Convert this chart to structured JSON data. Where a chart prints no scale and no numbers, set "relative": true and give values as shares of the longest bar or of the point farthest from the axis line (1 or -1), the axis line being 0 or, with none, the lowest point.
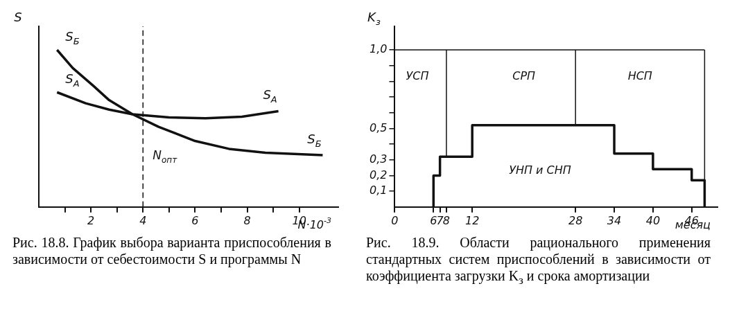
{
  "chart_data": [
    {
      "type": "line",
      "relative": true,
      "ylabel": "S",
      "xlabel": "N·10$^{-3}$",
      "xlim": [
        0,
        11.5
      ],
      "xticks": [
        {
          "value": 1,
          "label": null
        },
        2,
        {
          "value": 3,
          "label": null
        },
        4,
        {
          "value": 5,
          "label": null
        },
        6,
        {
          "value": 7,
          "label": null
        },
        8,
        {
          "value": 9,
          "label": null
        },
        10
      ],
      "series": [
        {
          "name": "S$_{Б}$",
          "color": "#111111",
          "x": [
            0.7,
            1.3,
            2.1,
            2.7,
            3.6,
            4.6,
            6.0,
            7.3,
            8.7,
            10.9
          ],
          "values": [
            1.0,
            0.885,
            0.77,
            0.68,
            0.59,
            0.51,
            0.42,
            0.37,
            0.345,
            0.33
          ]
        },
        {
          "name": "S$_{A}$",
          "color": "#111111",
          "x": [
            0.7,
            1.8,
            2.7,
            3.6,
            5.0,
            6.4,
            7.8,
            9.2
          ],
          "values": [
            0.73,
            0.66,
            0.62,
            0.59,
            0.57,
            0.565,
            0.575,
            0.61
          ]
        }
      ],
      "ref_lines": [
        {
          "axis": "x",
          "value": 4,
          "label": "N$_{опт}$",
          "line_style": "dashed",
          "color": "#111111"
        }
      ],
      "title": "Рис. 18.8. График выбора варианта приспособления в зависимости от себестоимости S и программы N",
      "grid": false,
      "legend": false,
      "marker": "none"
    },
    {
      "type": "step",
      "ylabel": "K$_{з}$",
      "xlabel": "месяц",
      "xlim": [
        0,
        50
      ],
      "xticks": [
        0,
        6,
        7,
        8,
        12,
        28,
        34,
        40,
        46
      ],
      "ylim": [
        0,
        1.15
      ],
      "yticks": [
        {
          "value": 0.1,
          "label": "0,1"
        },
        {
          "value": 0.2,
          "label": "0,2"
        },
        {
          "value": 0.3,
          "label": "0,3"
        },
        {
          "value": 0.4,
          "label": null
        },
        {
          "value": 0.5,
          "label": "0,5"
        },
        {
          "value": 0.6,
          "label": null
        },
        {
          "value": 0.7,
          "label": null
        },
        {
          "value": 0.8,
          "label": null
        },
        {
          "value": 0.9,
          "label": null
        },
        {
          "value": 1.0,
          "label": "1,0"
        }
      ],
      "series": [
        {
          "color": "#111111",
          "x": [
            6,
            6,
            7,
            12,
            34,
            40,
            46,
            48,
            48
          ],
          "values": [
            0,
            0.2,
            0.32,
            0.52,
            0.34,
            0.24,
            0.17,
            0.17,
            0
          ]
        },
        {
          "type": "line",
          "color": "#111111",
          "x": [
            0,
            48
          ],
          "values": [
            1.0,
            1.0
          ]
        },
        {
          "type": "line",
          "color": "#111111",
          "x": [
            8,
            8
          ],
          "values": [
            0.32,
            1.0
          ]
        },
        {
          "type": "line",
          "color": "#111111",
          "x": [
            28,
            28
          ],
          "values": [
            0.52,
            1.0
          ]
        },
        {
          "type": "line",
          "color": "#111111",
          "x": [
            48,
            48
          ],
          "values": [
            0.17,
            1.0
          ]
        }
      ],
      "annotations": [
        "УСП",
        "СРП",
        "НСП",
        "УНП и СНП"
      ],
      "title": "Рис. 18.9. Области рационального применения стандартных систем приспособлений в зависимости от коэффициента загрузки K$_{з}$ и срока амортизации",
      "grid": false,
      "legend": false,
      "marker": "none"
    }
  ]
}
